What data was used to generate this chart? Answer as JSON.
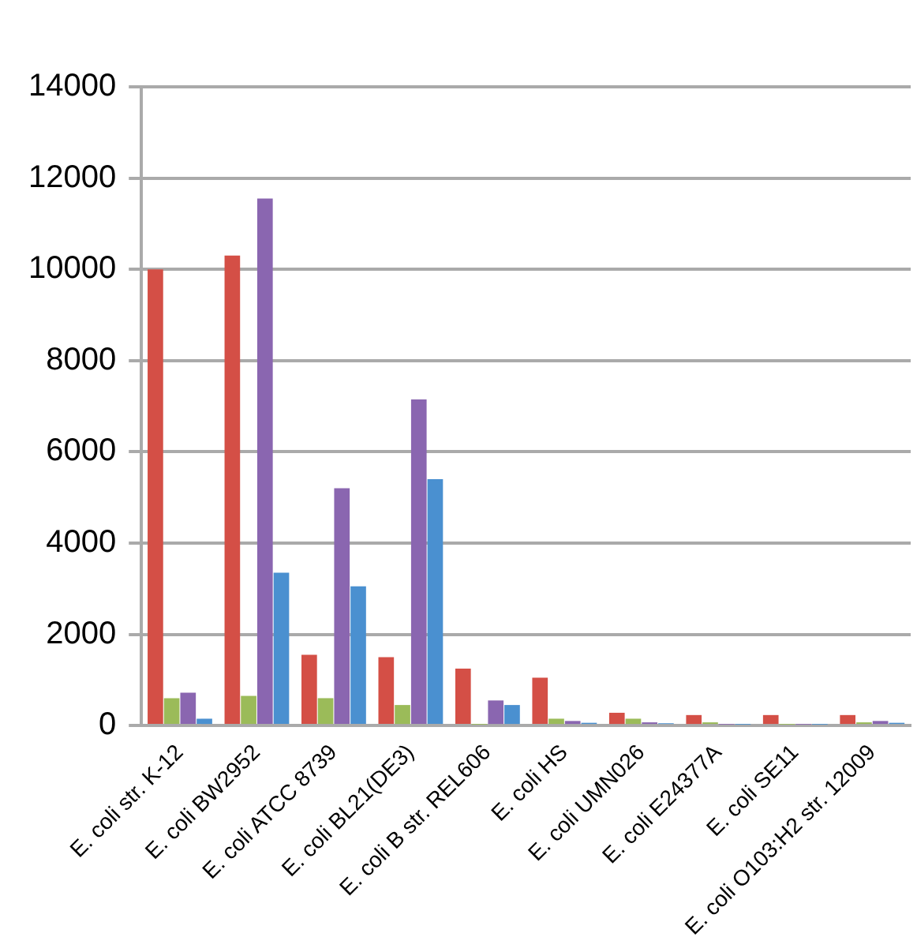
{
  "chart_data": {
    "type": "bar",
    "categories": [
      "E. coli str. K-12",
      "E. coli BW2952",
      "E. coli ATCC 8739",
      "E. coli BL21(DE3)",
      "E. coli B str. REL606",
      "E. coli HS",
      "E. coli UMN026",
      "E. coli E24377A",
      "E. coli SE11",
      "E. coli O103:H2 str. 12009"
    ],
    "series": [
      {
        "color": "#d44f46",
        "values": [
          10000,
          10300,
          1550,
          1500,
          1250,
          1050,
          280,
          230,
          230,
          230
        ]
      },
      {
        "color": "#9bbb59",
        "values": [
          600,
          650,
          600,
          450,
          20,
          150,
          150,
          70,
          20,
          70
        ]
      },
      {
        "color": "#8a66b0",
        "values": [
          720,
          11550,
          5200,
          7150,
          550,
          100,
          70,
          20,
          20,
          100
        ]
      },
      {
        "color": "#4a90d0",
        "values": [
          150,
          3350,
          3050,
          5400,
          450,
          60,
          50,
          20,
          20,
          60
        ]
      }
    ],
    "ylim": [
      0,
      14000
    ],
    "yticks": [
      0,
      2000,
      4000,
      6000,
      8000,
      10000,
      12000,
      14000
    ],
    "grid": "y",
    "legend": false
  }
}
